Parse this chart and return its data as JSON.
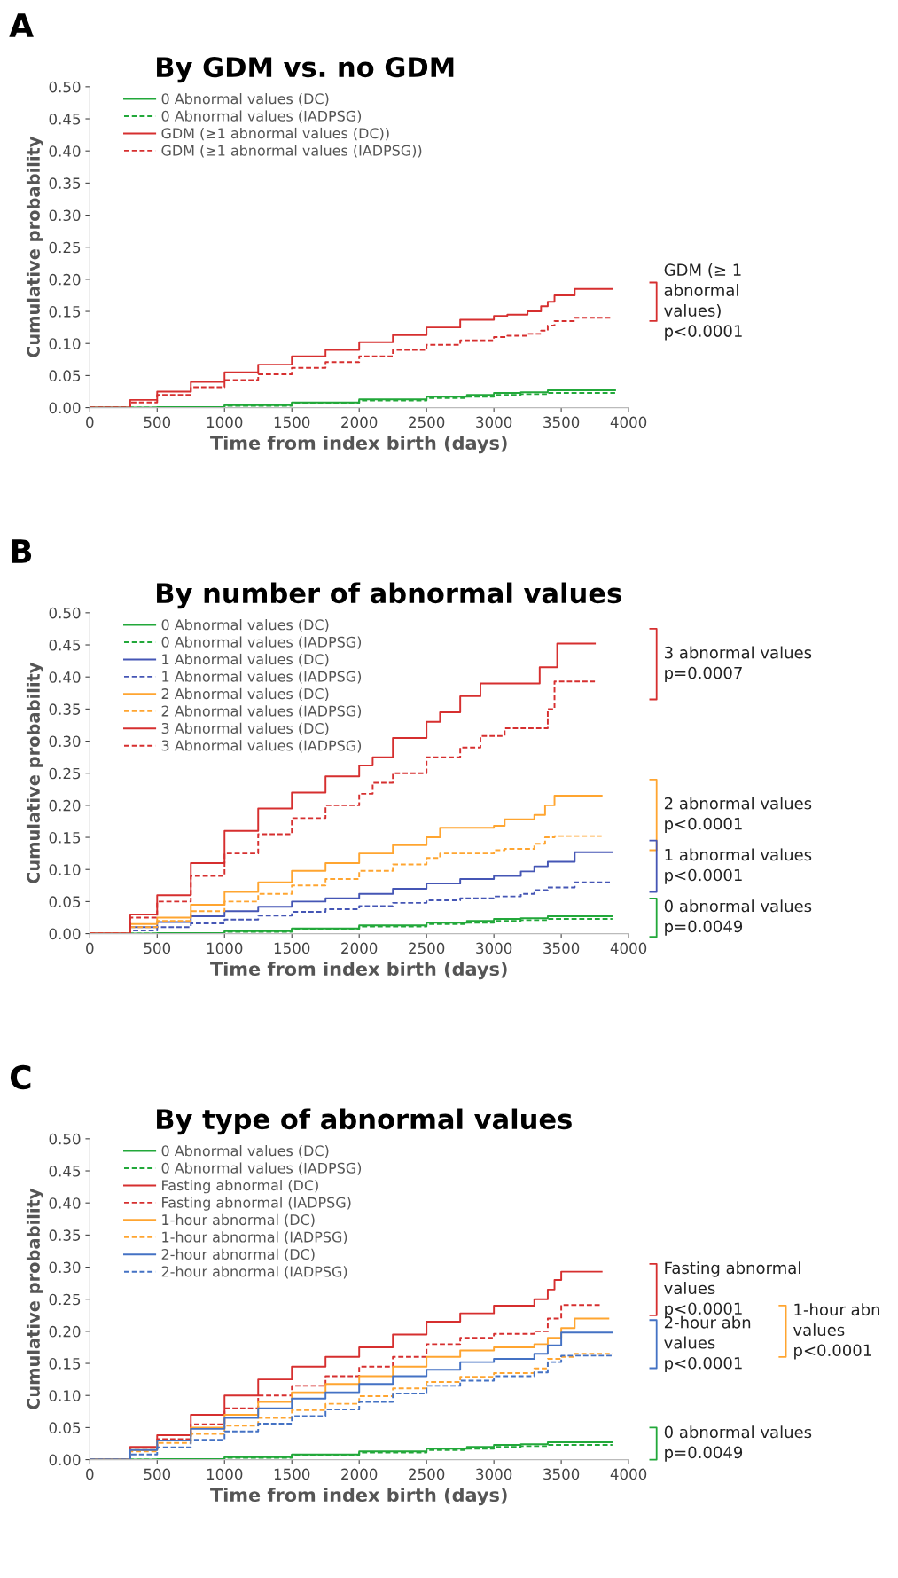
{
  "chart_data": [
    {
      "type": "step",
      "title": "By GDM vs. no GDM",
      "xlabel": "Time from index birth (days)",
      "ylabel": "Cumulative probability",
      "xlim": [
        0,
        4000
      ],
      "xticks": [
        0,
        500,
        1000,
        1500,
        2000,
        2500,
        3000,
        3500,
        4000
      ],
      "ylim": [
        0,
        0.5
      ],
      "yticks": [
        {
          "value": 0,
          "label": "0.00"
        },
        {
          "value": 0.05,
          "label": "0.05"
        },
        {
          "value": 0.1,
          "label": "0.10"
        },
        {
          "value": 0.15,
          "label": "0.15"
        },
        {
          "value": 0.2,
          "label": "0.20"
        },
        {
          "value": 0.25,
          "label": "0.25"
        },
        {
          "value": 0.3,
          "label": "0.30"
        },
        {
          "value": 0.35,
          "label": "0.35"
        },
        {
          "value": 0.4,
          "label": "0.40"
        },
        {
          "value": 0.45,
          "label": "0.45"
        },
        {
          "value": 0.5,
          "label": "0.50"
        }
      ],
      "grid": false,
      "legend": "top left",
      "annotations": [
        "A",
        "GDM (≥ 1\nabnormal\nvalues)\np<0.0001"
      ],
      "series": [
        {
          "name": "0 Abnormal values (DC)",
          "color": "#22a83a",
          "line_style": "solid",
          "x": [
            0,
            180,
            500,
            1000,
            1500,
            2000,
            2500,
            2800,
            3000,
            3200,
            3400,
            3900
          ],
          "values": [
            0,
            0,
            0.001,
            0.004,
            0.008,
            0.013,
            0.017,
            0.02,
            0.023,
            0.024,
            0.027,
            0.027
          ]
        },
        {
          "name": "0 Abnormal values (IADPSG)",
          "color": "#22a83a",
          "line_style": "dashed",
          "x": [
            0,
            180,
            500,
            1000,
            1500,
            2000,
            2500,
            2800,
            3000,
            3200,
            3400,
            3900
          ],
          "values": [
            0,
            0,
            0.001,
            0.003,
            0.007,
            0.011,
            0.015,
            0.017,
            0.02,
            0.021,
            0.023,
            0.023
          ]
        },
        {
          "name": "GDM (≥1 abnormal values (DC))",
          "color": "#d62f2f",
          "line_style": "solid",
          "x": [
            0,
            180,
            300,
            500,
            750,
            1000,
            1250,
            1500,
            1750,
            2000,
            2250,
            2500,
            2750,
            3000,
            3100,
            3250,
            3350,
            3400,
            3450,
            3600,
            3880
          ],
          "values": [
            0,
            0,
            0.012,
            0.025,
            0.04,
            0.055,
            0.067,
            0.08,
            0.09,
            0.102,
            0.113,
            0.125,
            0.137,
            0.143,
            0.145,
            0.15,
            0.158,
            0.165,
            0.175,
            0.185,
            0.185
          ]
        },
        {
          "name": "GDM (≥1 abnormal values (IADPSG))",
          "color": "#d62f2f",
          "line_style": "dashed",
          "x": [
            0,
            180,
            300,
            500,
            750,
            1000,
            1250,
            1500,
            1750,
            2000,
            2250,
            2500,
            2750,
            3000,
            3100,
            3250,
            3350,
            3400,
            3450,
            3600,
            3880
          ],
          "values": [
            0,
            0,
            0.008,
            0.02,
            0.032,
            0.043,
            0.052,
            0.062,
            0.071,
            0.08,
            0.09,
            0.098,
            0.105,
            0.11,
            0.112,
            0.115,
            0.12,
            0.128,
            0.135,
            0.14,
            0.14
          ]
        }
      ]
    },
    {
      "type": "step",
      "title": "By number of abnormal values",
      "xlabel": "Time from index birth (days)",
      "ylabel": "Cumulative probability",
      "xlim": [
        0,
        4000
      ],
      "xticks": [
        0,
        500,
        1000,
        1500,
        2000,
        2500,
        3000,
        3500,
        4000
      ],
      "ylim": [
        0,
        0.5
      ],
      "yticks": [
        {
          "value": 0,
          "label": "0.00"
        },
        {
          "value": 0.05,
          "label": "0.05"
        },
        {
          "value": 0.1,
          "label": "0.10"
        },
        {
          "value": 0.15,
          "label": "0.15"
        },
        {
          "value": 0.2,
          "label": "0.20"
        },
        {
          "value": 0.25,
          "label": "0.25"
        },
        {
          "value": 0.3,
          "label": "0.30"
        },
        {
          "value": 0.35,
          "label": "0.35"
        },
        {
          "value": 0.4,
          "label": "0.40"
        },
        {
          "value": 0.45,
          "label": "0.45"
        },
        {
          "value": 0.5,
          "label": "0.50"
        }
      ],
      "grid": false,
      "legend": "top left",
      "annotations": [
        "B",
        "3 abnormal values\np=0.0007",
        "2 abnormal values\np<0.0001",
        "1 abnormal values\np<0.0001",
        "0 abnormal values\np=0.0049"
      ],
      "series": [
        {
          "name": "0 Abnormal values (DC)",
          "color": "#22a83a",
          "line_style": "solid",
          "x": [
            0,
            180,
            500,
            1000,
            1500,
            2000,
            2500,
            2800,
            3000,
            3200,
            3400,
            3880
          ],
          "values": [
            0,
            0,
            0.001,
            0.004,
            0.008,
            0.013,
            0.017,
            0.02,
            0.023,
            0.024,
            0.027,
            0.027
          ]
        },
        {
          "name": "0 Abnormal values (IADPSG)",
          "color": "#22a83a",
          "line_style": "dashed",
          "x": [
            0,
            180,
            500,
            1000,
            1500,
            2000,
            2500,
            2800,
            3000,
            3200,
            3400,
            3880
          ],
          "values": [
            0,
            0,
            0.001,
            0.003,
            0.007,
            0.011,
            0.015,
            0.017,
            0.02,
            0.021,
            0.023,
            0.023
          ]
        },
        {
          "name": "1 Abnormal values (DC)",
          "color": "#4556b5",
          "line_style": "solid",
          "x": [
            0,
            180,
            300,
            500,
            750,
            1000,
            1250,
            1500,
            1750,
            2000,
            2250,
            2500,
            2750,
            3000,
            3200,
            3300,
            3400,
            3600,
            3880
          ],
          "values": [
            0,
            0,
            0.01,
            0.018,
            0.027,
            0.035,
            0.042,
            0.05,
            0.055,
            0.062,
            0.07,
            0.078,
            0.085,
            0.09,
            0.097,
            0.105,
            0.112,
            0.127,
            0.127
          ]
        },
        {
          "name": "1 Abnormal values (IADPSG)",
          "color": "#4556b5",
          "line_style": "dashed",
          "x": [
            0,
            180,
            300,
            500,
            750,
            1000,
            1250,
            1500,
            1750,
            2000,
            2250,
            2500,
            2750,
            3000,
            3200,
            3300,
            3400,
            3600,
            3880
          ],
          "values": [
            0,
            0,
            0.005,
            0.01,
            0.016,
            0.022,
            0.028,
            0.034,
            0.038,
            0.043,
            0.048,
            0.052,
            0.055,
            0.058,
            0.062,
            0.068,
            0.072,
            0.08,
            0.08
          ]
        },
        {
          "name": "2 Abnormal values (DC)",
          "color": "#ffa530",
          "line_style": "solid",
          "x": [
            0,
            180,
            300,
            500,
            750,
            1000,
            1250,
            1500,
            1750,
            2000,
            2250,
            2500,
            2600,
            3000,
            3080,
            3300,
            3380,
            3450,
            3800
          ],
          "values": [
            0,
            0,
            0.015,
            0.025,
            0.045,
            0.065,
            0.08,
            0.098,
            0.11,
            0.125,
            0.138,
            0.15,
            0.165,
            0.168,
            0.178,
            0.185,
            0.2,
            0.215,
            0.215
          ]
        },
        {
          "name": "2 Abnormal values (IADPSG)",
          "color": "#ffa530",
          "line_style": "dashed",
          "x": [
            0,
            180,
            300,
            500,
            750,
            1000,
            1250,
            1500,
            1750,
            2000,
            2250,
            2500,
            2600,
            3000,
            3080,
            3300,
            3380,
            3450,
            3800
          ],
          "values": [
            0,
            0,
            0.01,
            0.02,
            0.035,
            0.05,
            0.062,
            0.075,
            0.085,
            0.098,
            0.108,
            0.118,
            0.125,
            0.13,
            0.132,
            0.14,
            0.15,
            0.152,
            0.152
          ]
        },
        {
          "name": "3 Abnormal values (DC)",
          "color": "#d62f2f",
          "line_style": "solid",
          "x": [
            0,
            180,
            300,
            500,
            750,
            1000,
            1250,
            1500,
            1750,
            2000,
            2100,
            2250,
            2500,
            2600,
            2750,
            2900,
            3300,
            3340,
            3350,
            3470,
            3750
          ],
          "values": [
            0,
            0,
            0.03,
            0.06,
            0.11,
            0.16,
            0.195,
            0.22,
            0.245,
            0.262,
            0.275,
            0.305,
            0.33,
            0.345,
            0.37,
            0.39,
            0.39,
            0.415,
            0.415,
            0.452,
            0.452
          ]
        },
        {
          "name": "3 Abnormal values (IADPSG)",
          "color": "#d62f2f",
          "line_style": "dashed",
          "x": [
            0,
            180,
            300,
            500,
            750,
            1000,
            1250,
            1500,
            1750,
            2000,
            2100,
            2250,
            2500,
            2750,
            2900,
            3080,
            3330,
            3400,
            3450,
            3750
          ],
          "values": [
            0,
            0,
            0.025,
            0.05,
            0.09,
            0.125,
            0.155,
            0.18,
            0.2,
            0.218,
            0.235,
            0.25,
            0.275,
            0.29,
            0.308,
            0.32,
            0.32,
            0.35,
            0.393,
            0.393
          ]
        }
      ]
    },
    {
      "type": "step",
      "title": "By type of abnormal values",
      "xlabel": "Time from index birth (days)",
      "ylabel": "Cumulative probability",
      "xlim": [
        0,
        4000
      ],
      "xticks": [
        0,
        500,
        1000,
        1500,
        2000,
        2500,
        3000,
        3500,
        4000
      ],
      "ylim": [
        0,
        0.5
      ],
      "yticks": [
        {
          "value": 0,
          "label": "0.00"
        },
        {
          "value": 0.05,
          "label": "0.05"
        },
        {
          "value": 0.1,
          "label": "0.10"
        },
        {
          "value": 0.15,
          "label": "0.15"
        },
        {
          "value": 0.2,
          "label": "0.20"
        },
        {
          "value": 0.25,
          "label": "0.25"
        },
        {
          "value": 0.3,
          "label": "0.30"
        },
        {
          "value": 0.35,
          "label": "0.35"
        },
        {
          "value": 0.4,
          "label": "0.40"
        },
        {
          "value": 0.45,
          "label": "0.45"
        },
        {
          "value": 0.5,
          "label": "0.50"
        }
      ],
      "grid": false,
      "legend": "top left",
      "annotations": [
        "C",
        "Fasting abnormal\nvalues\np<0.0001",
        "2-hour abn\nvalues\np<0.0001",
        "1-hour abn\nvalues\np<0.0001",
        "0 abnormal values\np=0.0049"
      ],
      "series": [
        {
          "name": "0 Abnormal values (DC)",
          "color": "#22a83a",
          "line_style": "solid",
          "x": [
            0,
            180,
            500,
            1000,
            1500,
            2000,
            2500,
            2800,
            3000,
            3200,
            3400,
            3880
          ],
          "values": [
            0,
            0,
            0.001,
            0.004,
            0.008,
            0.013,
            0.017,
            0.02,
            0.023,
            0.024,
            0.027,
            0.027
          ]
        },
        {
          "name": "0 Abnormal values (IADPSG)",
          "color": "#22a83a",
          "line_style": "dashed",
          "x": [
            0,
            180,
            500,
            1000,
            1500,
            2000,
            2500,
            2800,
            3000,
            3200,
            3400,
            3880
          ],
          "values": [
            0,
            0,
            0.001,
            0.003,
            0.007,
            0.011,
            0.015,
            0.017,
            0.02,
            0.021,
            0.023,
            0.023
          ]
        },
        {
          "name": "Fasting abnormal (DC)",
          "color": "#d62f2f",
          "line_style": "solid",
          "x": [
            0,
            180,
            300,
            500,
            750,
            1000,
            1250,
            1500,
            1750,
            2000,
            2250,
            2500,
            2750,
            3000,
            3300,
            3400,
            3450,
            3500,
            3800
          ],
          "values": [
            0,
            0,
            0.02,
            0.038,
            0.07,
            0.1,
            0.125,
            0.145,
            0.16,
            0.175,
            0.195,
            0.215,
            0.228,
            0.24,
            0.25,
            0.265,
            0.28,
            0.293,
            0.293
          ]
        },
        {
          "name": "Fasting abnormal (IADPSG)",
          "color": "#d62f2f",
          "line_style": "dashed",
          "x": [
            0,
            180,
            300,
            500,
            750,
            1000,
            1250,
            1500,
            1750,
            2000,
            2250,
            2500,
            2750,
            3000,
            3300,
            3400,
            3500,
            3800
          ],
          "values": [
            0,
            0,
            0.015,
            0.032,
            0.055,
            0.08,
            0.1,
            0.115,
            0.13,
            0.145,
            0.16,
            0.18,
            0.19,
            0.196,
            0.2,
            0.22,
            0.241,
            0.241
          ]
        },
        {
          "name": "1-hour abnormal (DC)",
          "color": "#ffa530",
          "line_style": "solid",
          "x": [
            0,
            180,
            300,
            500,
            750,
            1000,
            1250,
            1500,
            1750,
            2000,
            2250,
            2500,
            2750,
            3000,
            3300,
            3400,
            3500,
            3600,
            3850
          ],
          "values": [
            0,
            0,
            0.015,
            0.03,
            0.05,
            0.07,
            0.09,
            0.105,
            0.118,
            0.13,
            0.145,
            0.16,
            0.17,
            0.175,
            0.18,
            0.19,
            0.205,
            0.22,
            0.22
          ]
        },
        {
          "name": "1-hour abnormal (IADPSG)",
          "color": "#ffa530",
          "line_style": "dashed",
          "x": [
            0,
            180,
            300,
            500,
            750,
            1000,
            1250,
            1500,
            1750,
            2000,
            2250,
            2500,
            2750,
            3000,
            3300,
            3400,
            3500,
            3600,
            3880
          ],
          "values": [
            0,
            0,
            0.013,
            0.026,
            0.04,
            0.053,
            0.065,
            0.077,
            0.087,
            0.099,
            0.111,
            0.121,
            0.129,
            0.135,
            0.142,
            0.157,
            0.16,
            0.165,
            0.165
          ]
        },
        {
          "name": "2-hour abnormal (DC)",
          "color": "#4472c4",
          "line_style": "solid",
          "x": [
            0,
            180,
            300,
            500,
            750,
            1000,
            1250,
            1500,
            1750,
            2000,
            2250,
            2500,
            2750,
            3000,
            3300,
            3400,
            3500,
            3880
          ],
          "values": [
            0,
            0,
            0.015,
            0.03,
            0.048,
            0.065,
            0.08,
            0.095,
            0.105,
            0.118,
            0.13,
            0.14,
            0.152,
            0.157,
            0.165,
            0.178,
            0.198,
            0.198
          ]
        },
        {
          "name": "2-hour abnormal (IADPSG)",
          "color": "#4472c4",
          "line_style": "dashed",
          "x": [
            0,
            180,
            300,
            500,
            750,
            1000,
            1250,
            1500,
            1750,
            2000,
            2250,
            2500,
            2750,
            3000,
            3300,
            3400,
            3500,
            3880
          ],
          "values": [
            0,
            0,
            0.008,
            0.019,
            0.031,
            0.044,
            0.056,
            0.068,
            0.078,
            0.09,
            0.103,
            0.115,
            0.123,
            0.13,
            0.136,
            0.152,
            0.162,
            0.162
          ]
        }
      ]
    }
  ]
}
